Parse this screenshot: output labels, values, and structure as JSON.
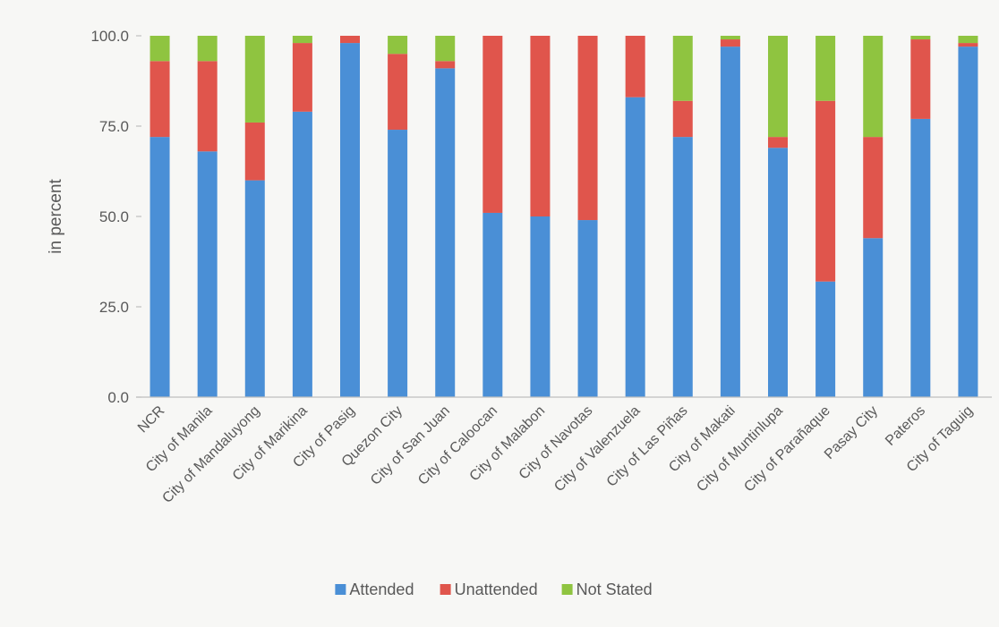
{
  "chart_data": {
    "type": "bar",
    "stacked": true,
    "title": "",
    "xlabel": "",
    "ylabel": "in percent",
    "ylim": [
      0,
      100
    ],
    "yticks": [
      "0.0",
      "25.0",
      "50.0",
      "75.0",
      "100.0"
    ],
    "grid": false,
    "legend_position": "bottom",
    "categories": [
      "NCR",
      "City of Manila",
      "City of Mandaluyong",
      "City of Marikina",
      "City of Pasig",
      "Quezon City",
      "City of San Juan",
      "City of Caloocan",
      "City of Malabon",
      "City of Navotas",
      "City of Valenzuela",
      "City of Las Piñas",
      "City of Makati",
      "City of Muntinlupa",
      "City of Parañaque",
      "Pasay City",
      "Pateros",
      "City of Taguig"
    ],
    "series": [
      {
        "name": "Attended",
        "color": "#4a8fd6",
        "values": [
          72,
          68,
          60,
          79,
          98,
          74,
          91,
          51,
          50,
          49,
          83,
          72,
          97,
          69,
          32,
          44,
          77,
          97
        ]
      },
      {
        "name": "Unattended",
        "color": "#e0554c",
        "values": [
          21,
          25,
          16,
          19,
          2,
          21,
          2,
          49,
          50,
          51,
          17,
          10,
          2,
          3,
          50,
          28,
          22,
          1
        ]
      },
      {
        "name": "Not Stated",
        "color": "#8fc440",
        "values": [
          7,
          7,
          24,
          2,
          0,
          5,
          7,
          0,
          0,
          0,
          0,
          18,
          1,
          28,
          18,
          28,
          1,
          2
        ]
      }
    ]
  }
}
